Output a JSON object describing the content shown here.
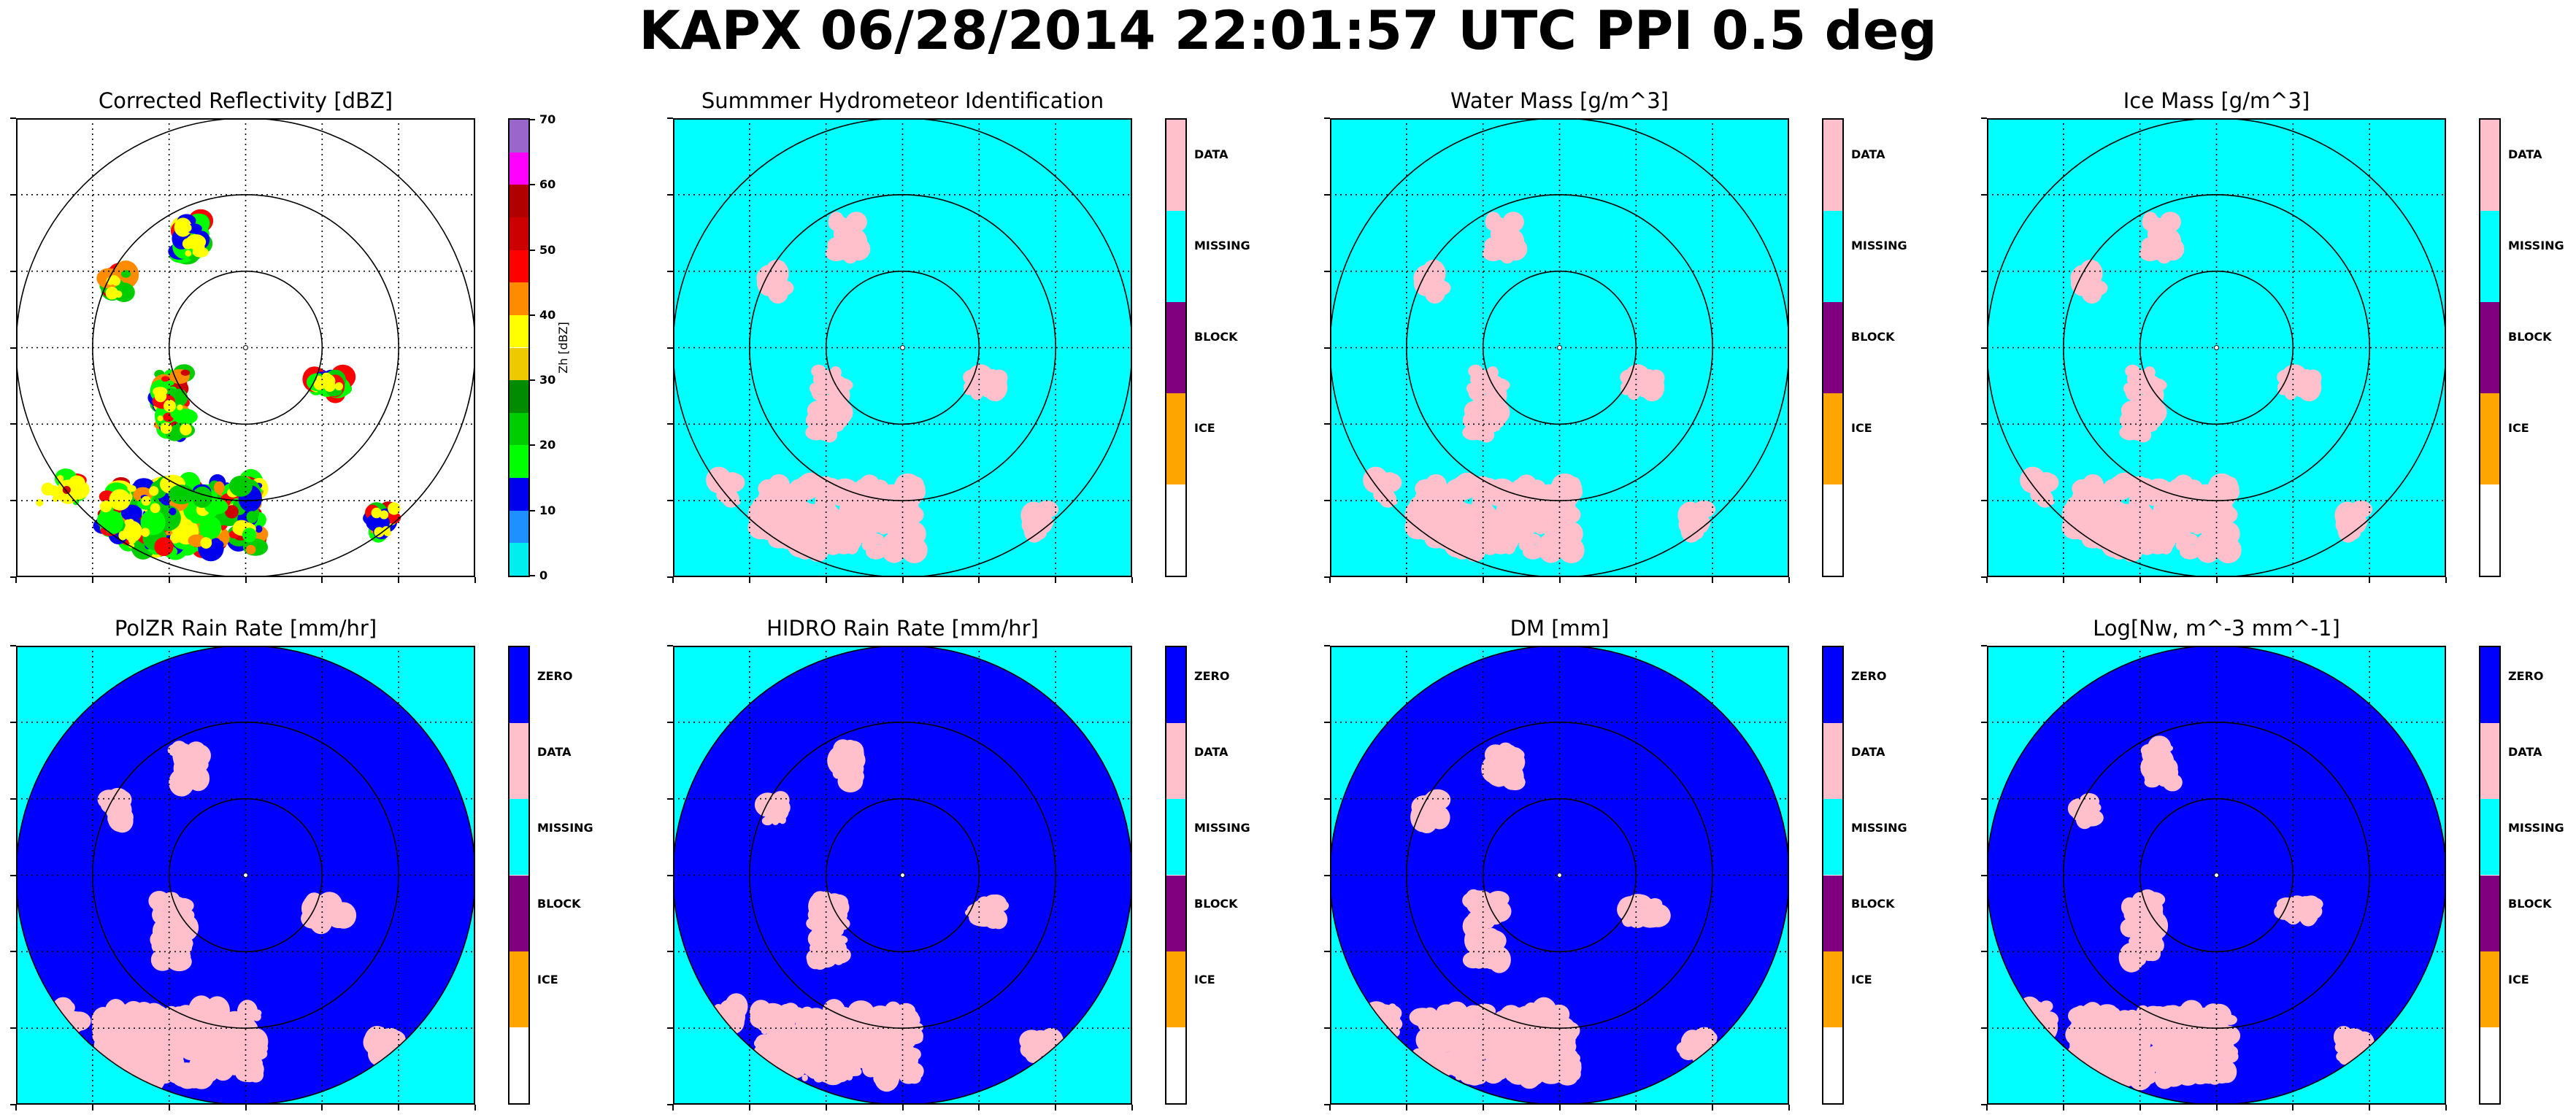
{
  "figure": {
    "title": "KAPX 06/28/2014 22:01:57 UTC PPI 0.5 deg"
  },
  "panels": [
    {
      "title": "Corrected Reflectivity [dBZ]",
      "kind": "reflectivity",
      "colorbar": {
        "label": "Zh [dBZ]",
        "ticks": [
          "0",
          "10",
          "20",
          "30",
          "40",
          "50",
          "60",
          "70"
        ]
      }
    },
    {
      "title": "Summmer Hydrometeor Identification",
      "kind": "hid",
      "colorbar": {
        "labels": [
          "DATA",
          "MISSING",
          "BLOCK",
          "ICE"
        ]
      }
    },
    {
      "title": "Water Mass [g/m^3]",
      "kind": "hid",
      "colorbar": {
        "labels": [
          "DATA",
          "MISSING",
          "BLOCK",
          "ICE"
        ]
      }
    },
    {
      "title": "Ice Mass [g/m^3]",
      "kind": "hid",
      "colorbar": {
        "labels": [
          "DATA",
          "MISSING",
          "BLOCK",
          "ICE"
        ]
      }
    },
    {
      "title": "PolZR Rain Rate [mm/hr]",
      "kind": "rain",
      "colorbar": {
        "labels": [
          "ZERO",
          "DATA",
          "MISSING",
          "BLOCK",
          "ICE"
        ]
      }
    },
    {
      "title": "HIDRO Rain Rate [mm/hr]",
      "kind": "rain",
      "colorbar": {
        "labels": [
          "ZERO",
          "DATA",
          "MISSING",
          "BLOCK",
          "ICE"
        ]
      }
    },
    {
      "title": "DM [mm]",
      "kind": "rain",
      "colorbar": {
        "labels": [
          "ZERO",
          "DATA",
          "MISSING",
          "BLOCK",
          "ICE"
        ]
      }
    },
    {
      "title": "Log[Nw, m^-3 mm^-1]",
      "kind": "rain",
      "colorbar": {
        "labels": [
          "ZERO",
          "DATA",
          "MISSING",
          "BLOCK",
          "ICE"
        ]
      }
    }
  ],
  "colors": {
    "zero": "#0000ff",
    "data": "#ffc0cb",
    "missing": "#00ffff",
    "block": "#800080",
    "ice": "#ffa500",
    "blank": "#ffffff",
    "reflectivity_scale": [
      "#00eeee",
      "#1e90ff",
      "#0000ee",
      "#00ff00",
      "#00cd00",
      "#008b00",
      "#eec900",
      "#ffff00",
      "#ff8c00",
      "#ff0000",
      "#cd0000",
      "#b00000",
      "#ff00ff",
      "#9966cc"
    ]
  },
  "chart_data": {
    "type": "heatmap",
    "product": "PPI",
    "range_rings_count": 3,
    "reflectivity_levels_dbz": [
      0,
      5,
      10,
      15,
      20,
      25,
      30,
      35,
      40,
      45,
      50,
      55,
      60,
      65,
      70
    ],
    "category_scale_order_bottom_to_top": [
      "blank",
      "ICE",
      "BLOCK",
      "MISSING",
      "DATA",
      "ZERO"
    ],
    "echo_regions": [
      {
        "name": "southwest-main-complex",
        "center_frac": [
          0.36,
          0.87
        ],
        "extent_frac": [
          0.34,
          0.15
        ]
      },
      {
        "name": "west-line",
        "center_frac": [
          0.08,
          0.82
        ],
        "extent_frac": [
          0.12,
          0.07
        ]
      },
      {
        "name": "central-band",
        "center_frac": [
          0.34,
          0.62
        ],
        "extent_frac": [
          0.06,
          0.14
        ]
      },
      {
        "name": "east-cells",
        "center_frac": [
          0.68,
          0.58
        ],
        "extent_frac": [
          0.07,
          0.04
        ]
      },
      {
        "name": "southeast-cells",
        "center_frac": [
          0.8,
          0.88
        ],
        "extent_frac": [
          0.05,
          0.06
        ]
      },
      {
        "name": "north-cells",
        "center_frac": [
          0.38,
          0.26
        ],
        "extent_frac": [
          0.05,
          0.08
        ]
      },
      {
        "name": "northwest-cells",
        "center_frac": [
          0.22,
          0.36
        ],
        "extent_frac": [
          0.04,
          0.05
        ]
      }
    ]
  }
}
